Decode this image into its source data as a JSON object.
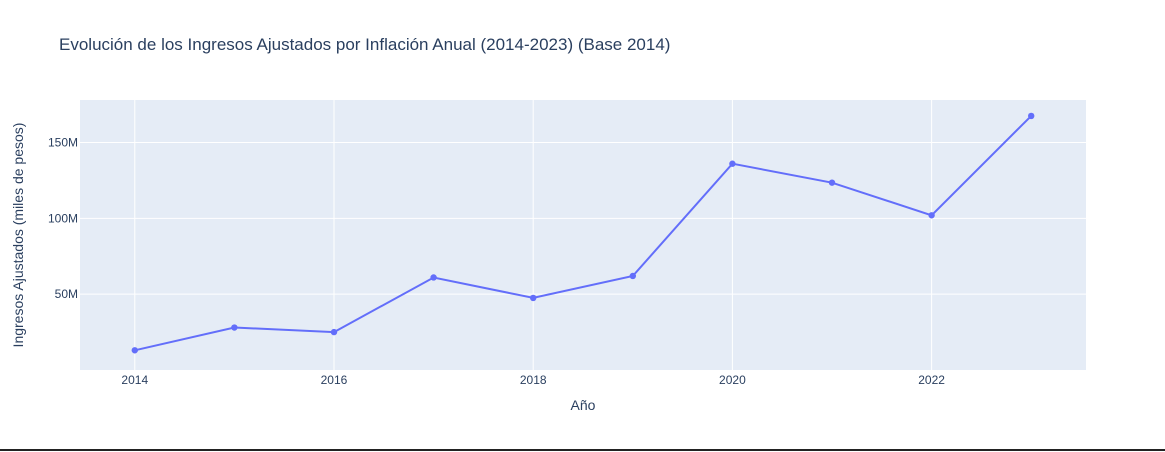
{
  "chart_data": {
    "type": "line",
    "title": "Evolución de los Ingresos Ajustados por Inflación Anual (2014-2023) (Base 2014)",
    "xlabel": "Año",
    "ylabel": "Ingresos Ajustados (miles de pesos)",
    "x": [
      2014,
      2015,
      2016,
      2017,
      2018,
      2019,
      2020,
      2021,
      2022,
      2023
    ],
    "series": [
      {
        "values": [
          13000000,
          28000000,
          25000000,
          61000000,
          47500000,
          62000000,
          136000000,
          123500000,
          102000000,
          167500000
        ]
      }
    ],
    "xlim": [
      2013.45,
      2023.55
    ],
    "ylim": [
      0,
      178000000
    ],
    "x_ticks": [
      2014,
      2016,
      2018,
      2020,
      2022
    ],
    "x_tick_labels": [
      "2014",
      "2016",
      "2018",
      "2020",
      "2022"
    ],
    "y_ticks": [
      50000000,
      100000000,
      150000000
    ],
    "y_tick_labels": [
      "50M",
      "100M",
      "150M"
    ],
    "grid": true,
    "legend": "none",
    "colors": {
      "line": "#636efa",
      "plot_background": "#e5ecf6",
      "grid": "#ffffff",
      "text": "#2a3f5f"
    }
  }
}
